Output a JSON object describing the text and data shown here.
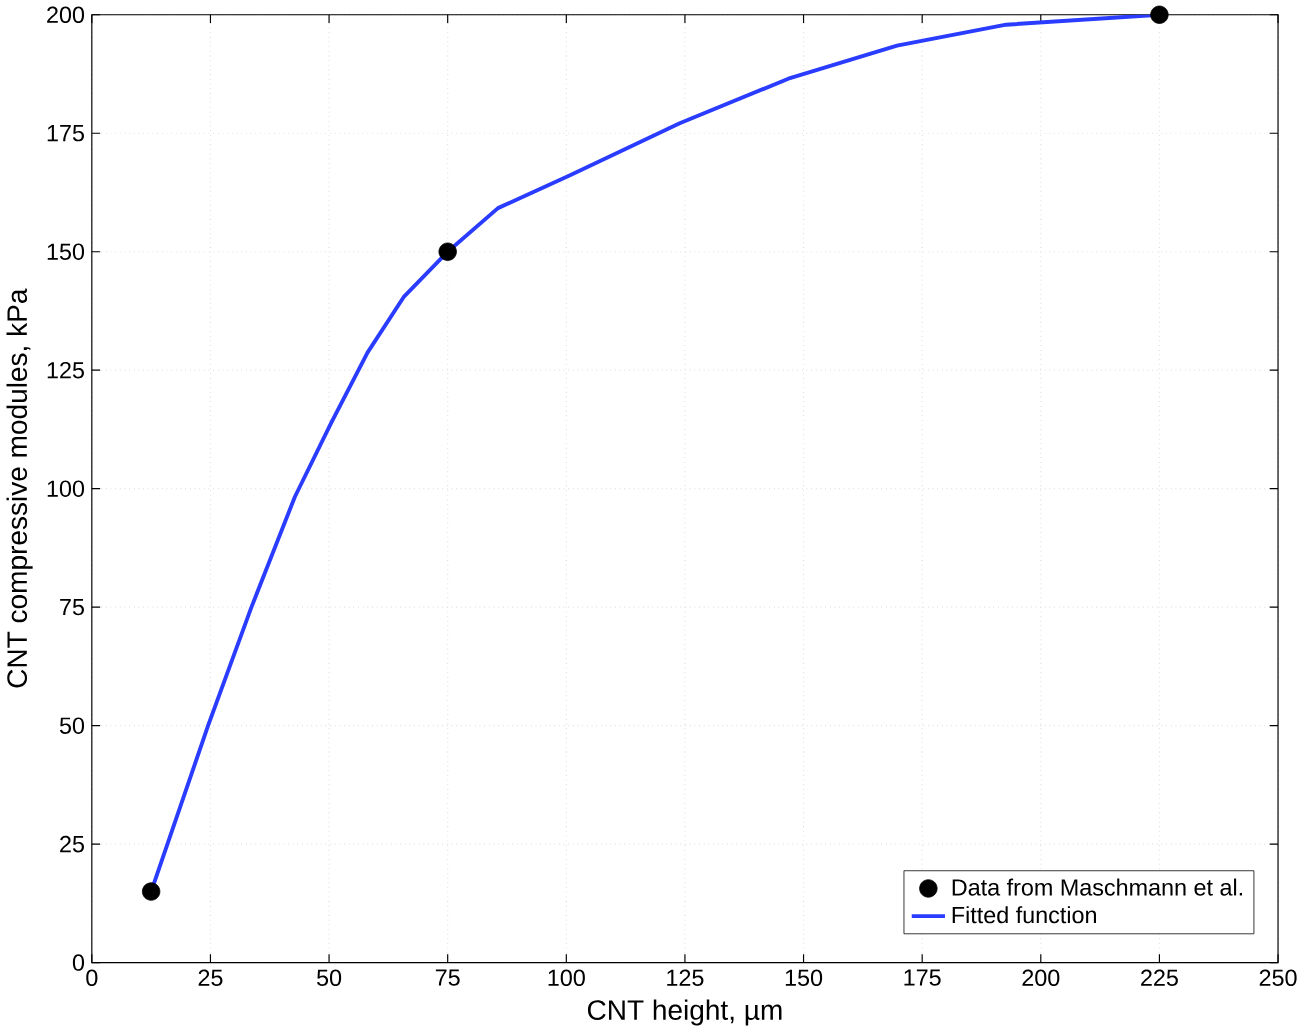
{
  "chart_data": {
    "type": "line",
    "xlabel": "CNT height, µm",
    "ylabel": "CNT compressive modules, kPa",
    "xlim": [
      0,
      250
    ],
    "ylim": [
      0,
      200
    ],
    "xticks": [
      0,
      25,
      50,
      75,
      100,
      125,
      150,
      175,
      200,
      225,
      250
    ],
    "yticks": [
      0,
      25,
      50,
      75,
      100,
      125,
      150,
      175,
      200
    ],
    "grid": true,
    "legend": "bottom right",
    "series": [
      {
        "name": "Data from Maschmann et al.",
        "type": "scatter",
        "marker": "circle",
        "color": "#000000",
        "x": [
          12.5,
          75,
          225
        ],
        "values": [
          15,
          150,
          200
        ]
      },
      {
        "name": "Fitted function",
        "marker": "none",
        "color": "#2a3cff",
        "x": [
          12.5,
          24.5,
          33.6,
          42.8,
          50.5,
          58.1,
          65.7,
          75,
          85.6,
          100.9,
          123.9,
          146.8,
          169.7,
          192.7,
          225
        ],
        "values": [
          15,
          50,
          74.9,
          98.3,
          114,
          128.7,
          140.4,
          150,
          159.2,
          166.2,
          177.1,
          186.5,
          193.5,
          197.9,
          200
        ]
      }
    ]
  }
}
